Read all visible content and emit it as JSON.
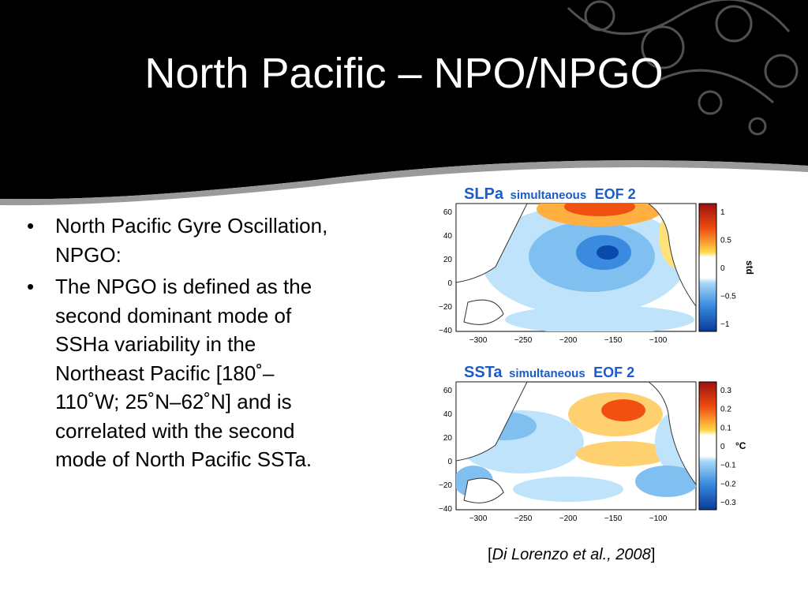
{
  "title": "North Pacific – NPO/NPGO",
  "bullets": [
    "North Pacific Gyre Oscillation, NPGO:",
    "The NPGO is defined as the second dominant mode of SSHa variability in the Northeast Pacific [180˚–110˚W; 25˚N–62˚N] and is correlated with the second mode of North Pacific SSTa."
  ],
  "figures": [
    {
      "variable": "SLPa",
      "mode": "simultaneous",
      "eof": "EOF 2",
      "y_ticks": [
        "60",
        "40",
        "20",
        "0",
        "−20",
        "−40"
      ],
      "x_ticks": [
        "−300",
        "−250",
        "−200",
        "−150",
        "−100"
      ],
      "colorbar_ticks": [
        "1",
        "0.5",
        "0",
        "−0.5",
        "−1"
      ],
      "colorbar_label": "std"
    },
    {
      "variable": "SSTa",
      "mode": "simultaneous",
      "eof": "EOF 2",
      "y_ticks": [
        "60",
        "40",
        "20",
        "0",
        "−20",
        "−40"
      ],
      "x_ticks": [
        "−300",
        "−250",
        "−200",
        "−150",
        "−100"
      ],
      "colorbar_ticks": [
        "0.3",
        "0.2",
        "0.1",
        "0",
        "−0.1",
        "−0.2",
        "−0.3"
      ],
      "colorbar_label": "°C"
    }
  ],
  "citation": {
    "open": "[",
    "authors": "Di Lorenzo et al., 2008",
    "close": "]"
  }
}
